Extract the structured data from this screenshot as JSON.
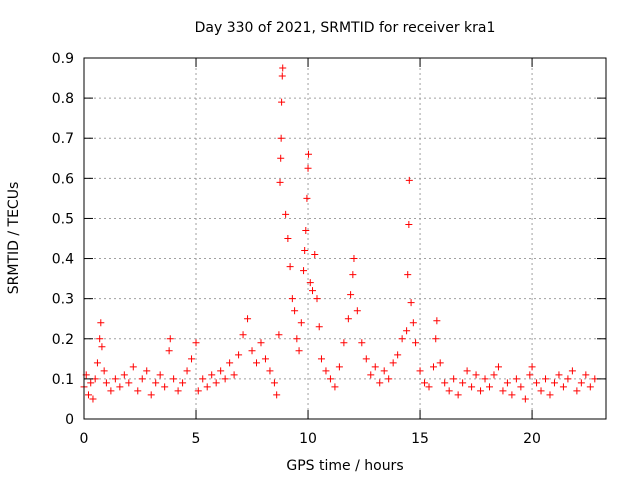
{
  "chart_data": {
    "type": "scatter",
    "title": "Day 330 of 2021, SRMTID for receiver kra1",
    "xlabel": "GPS time / hours",
    "ylabel": "SRMTID / TECUs",
    "xlim": [
      0,
      23.3
    ],
    "ylim": [
      0,
      0.9
    ],
    "xticks": [
      0,
      5,
      10,
      15,
      20
    ],
    "yticks": [
      0,
      0.1,
      0.2,
      0.3,
      0.4,
      0.5,
      0.6,
      0.7,
      0.8,
      0.9
    ],
    "xtick_labels": [
      "0",
      "5",
      "10",
      "15",
      "20"
    ],
    "ytick_labels": [
      "0",
      "0.1",
      "0.2",
      "0.3",
      "0.4",
      "0.5",
      "0.6",
      "0.7",
      "0.8",
      "0.9"
    ],
    "grid": true,
    "marker": "+",
    "marker_color": "#ff0000",
    "series": [
      {
        "name": "SRMTID",
        "color": "#ff0000",
        "points": [
          [
            0.0,
            0.08
          ],
          [
            0.1,
            0.11
          ],
          [
            0.2,
            0.06
          ],
          [
            0.3,
            0.09
          ],
          [
            0.4,
            0.05
          ],
          [
            0.5,
            0.1
          ],
          [
            0.6,
            0.14
          ],
          [
            0.7,
            0.2
          ],
          [
            0.75,
            0.24
          ],
          [
            0.8,
            0.18
          ],
          [
            0.9,
            0.12
          ],
          [
            1.0,
            0.09
          ],
          [
            1.2,
            0.07
          ],
          [
            1.4,
            0.1
          ],
          [
            1.6,
            0.08
          ],
          [
            1.8,
            0.11
          ],
          [
            2.0,
            0.09
          ],
          [
            2.2,
            0.13
          ],
          [
            2.4,
            0.07
          ],
          [
            2.6,
            0.1
          ],
          [
            2.8,
            0.12
          ],
          [
            3.0,
            0.06
          ],
          [
            3.2,
            0.09
          ],
          [
            3.4,
            0.11
          ],
          [
            3.6,
            0.08
          ],
          [
            3.8,
            0.17
          ],
          [
            3.85,
            0.2
          ],
          [
            4.0,
            0.1
          ],
          [
            4.2,
            0.07
          ],
          [
            4.4,
            0.09
          ],
          [
            4.6,
            0.12
          ],
          [
            4.8,
            0.15
          ],
          [
            5.0,
            0.19
          ],
          [
            5.1,
            0.07
          ],
          [
            5.3,
            0.1
          ],
          [
            5.5,
            0.08
          ],
          [
            5.7,
            0.11
          ],
          [
            5.9,
            0.09
          ],
          [
            6.1,
            0.12
          ],
          [
            6.3,
            0.1
          ],
          [
            6.5,
            0.14
          ],
          [
            6.7,
            0.11
          ],
          [
            6.9,
            0.16
          ],
          [
            7.1,
            0.21
          ],
          [
            7.3,
            0.25
          ],
          [
            7.5,
            0.17
          ],
          [
            7.7,
            0.14
          ],
          [
            7.9,
            0.19
          ],
          [
            8.1,
            0.15
          ],
          [
            8.3,
            0.12
          ],
          [
            8.5,
            0.09
          ],
          [
            8.6,
            0.06
          ],
          [
            8.7,
            0.21
          ],
          [
            8.75,
            0.59
          ],
          [
            8.78,
            0.65
          ],
          [
            8.8,
            0.7
          ],
          [
            8.82,
            0.79
          ],
          [
            8.85,
            0.855
          ],
          [
            8.87,
            0.875
          ],
          [
            9.0,
            0.51
          ],
          [
            9.1,
            0.45
          ],
          [
            9.2,
            0.38
          ],
          [
            9.3,
            0.3
          ],
          [
            9.4,
            0.27
          ],
          [
            9.5,
            0.2
          ],
          [
            9.6,
            0.17
          ],
          [
            9.7,
            0.24
          ],
          [
            9.8,
            0.37
          ],
          [
            9.85,
            0.42
          ],
          [
            9.9,
            0.47
          ],
          [
            9.95,
            0.55
          ],
          [
            10.0,
            0.625
          ],
          [
            10.02,
            0.66
          ],
          [
            10.1,
            0.34
          ],
          [
            10.2,
            0.32
          ],
          [
            10.3,
            0.41
          ],
          [
            10.4,
            0.3
          ],
          [
            10.5,
            0.23
          ],
          [
            10.6,
            0.15
          ],
          [
            10.8,
            0.12
          ],
          [
            11.0,
            0.1
          ],
          [
            11.2,
            0.08
          ],
          [
            11.4,
            0.13
          ],
          [
            11.6,
            0.19
          ],
          [
            11.8,
            0.25
          ],
          [
            11.9,
            0.31
          ],
          [
            12.0,
            0.36
          ],
          [
            12.05,
            0.4
          ],
          [
            12.2,
            0.27
          ],
          [
            12.4,
            0.19
          ],
          [
            12.6,
            0.15
          ],
          [
            12.8,
            0.11
          ],
          [
            13.0,
            0.13
          ],
          [
            13.2,
            0.09
          ],
          [
            13.4,
            0.12
          ],
          [
            13.6,
            0.1
          ],
          [
            13.8,
            0.14
          ],
          [
            14.0,
            0.16
          ],
          [
            14.2,
            0.2
          ],
          [
            14.4,
            0.22
          ],
          [
            14.45,
            0.36
          ],
          [
            14.5,
            0.485
          ],
          [
            14.52,
            0.595
          ],
          [
            14.6,
            0.29
          ],
          [
            14.7,
            0.24
          ],
          [
            14.8,
            0.19
          ],
          [
            15.0,
            0.12
          ],
          [
            15.2,
            0.09
          ],
          [
            15.4,
            0.08
          ],
          [
            15.6,
            0.13
          ],
          [
            15.7,
            0.2
          ],
          [
            15.75,
            0.245
          ],
          [
            15.9,
            0.14
          ],
          [
            16.1,
            0.09
          ],
          [
            16.3,
            0.07
          ],
          [
            16.5,
            0.1
          ],
          [
            16.7,
            0.06
          ],
          [
            16.9,
            0.09
          ],
          [
            17.1,
            0.12
          ],
          [
            17.3,
            0.08
          ],
          [
            17.5,
            0.11
          ],
          [
            17.7,
            0.07
          ],
          [
            17.9,
            0.1
          ],
          [
            18.1,
            0.08
          ],
          [
            18.3,
            0.11
          ],
          [
            18.5,
            0.13
          ],
          [
            18.7,
            0.07
          ],
          [
            18.9,
            0.09
          ],
          [
            19.1,
            0.06
          ],
          [
            19.3,
            0.1
          ],
          [
            19.5,
            0.08
          ],
          [
            19.7,
            0.05
          ],
          [
            19.9,
            0.11
          ],
          [
            20.0,
            0.13
          ],
          [
            20.2,
            0.09
          ],
          [
            20.4,
            0.07
          ],
          [
            20.6,
            0.1
          ],
          [
            20.8,
            0.06
          ],
          [
            21.0,
            0.09
          ],
          [
            21.2,
            0.11
          ],
          [
            21.4,
            0.08
          ],
          [
            21.6,
            0.1
          ],
          [
            21.8,
            0.12
          ],
          [
            22.0,
            0.07
          ],
          [
            22.2,
            0.09
          ],
          [
            22.4,
            0.11
          ],
          [
            22.6,
            0.08
          ],
          [
            22.8,
            0.1
          ]
        ]
      }
    ]
  }
}
